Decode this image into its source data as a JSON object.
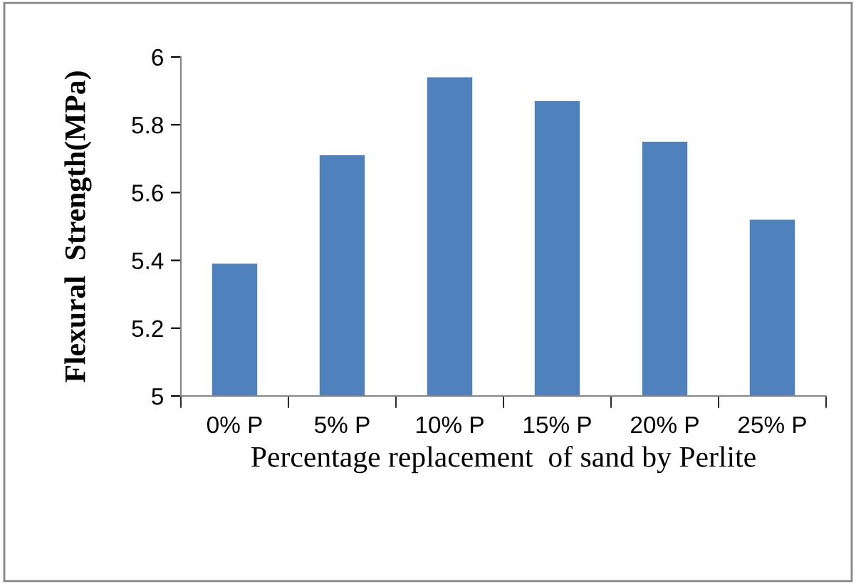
{
  "chart_data": {
    "type": "bar",
    "xlabel": "Percentage replacement  of sand by Perlite",
    "ylabel": "Flexural  Strength(MPa)",
    "categories": [
      "0% P",
      "5% P",
      "10% P",
      "15% P",
      "20% P",
      "25% P"
    ],
    "values": [
      5.39,
      5.71,
      5.94,
      5.87,
      5.75,
      5.52
    ],
    "color": "#4f81bd",
    "ylim": [
      5,
      6
    ],
    "yticks": [
      5,
      5.2,
      5.4,
      5.6,
      5.8,
      6
    ],
    "grid": false,
    "legend": false
  }
}
